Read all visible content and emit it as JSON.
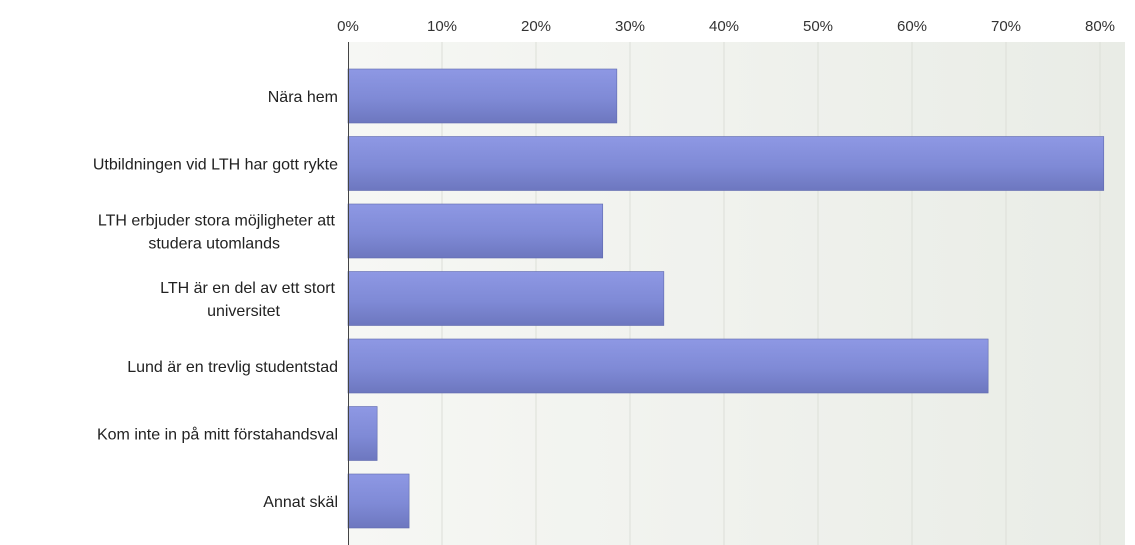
{
  "chart_data": {
    "type": "bar",
    "orientation": "horizontal",
    "categories": [
      [
        "Nära hem"
      ],
      [
        "Utbildningen vid LTH har gott rykte"
      ],
      [
        "LTH erbjuder stora möjligheter att",
        "studera utomlands"
      ],
      [
        "LTH är en del av ett stort",
        "universitet"
      ],
      [
        "Lund är en trevlig studentstad"
      ],
      [
        "Kom inte in på mitt förstahandsval"
      ],
      [
        "Annat skäl"
      ]
    ],
    "values": [
      28.6,
      80.4,
      27.1,
      33.6,
      68.1,
      3.1,
      6.5
    ],
    "xlim": [
      0,
      80
    ],
    "x_ticks": [
      "0%",
      "10%",
      "20%",
      "30%",
      "40%",
      "50%",
      "60%",
      "70%",
      "80%"
    ],
    "axis_position": "top",
    "grid": true,
    "bar_color": "#7f8ad6",
    "plot_background": "#eef0ec"
  }
}
